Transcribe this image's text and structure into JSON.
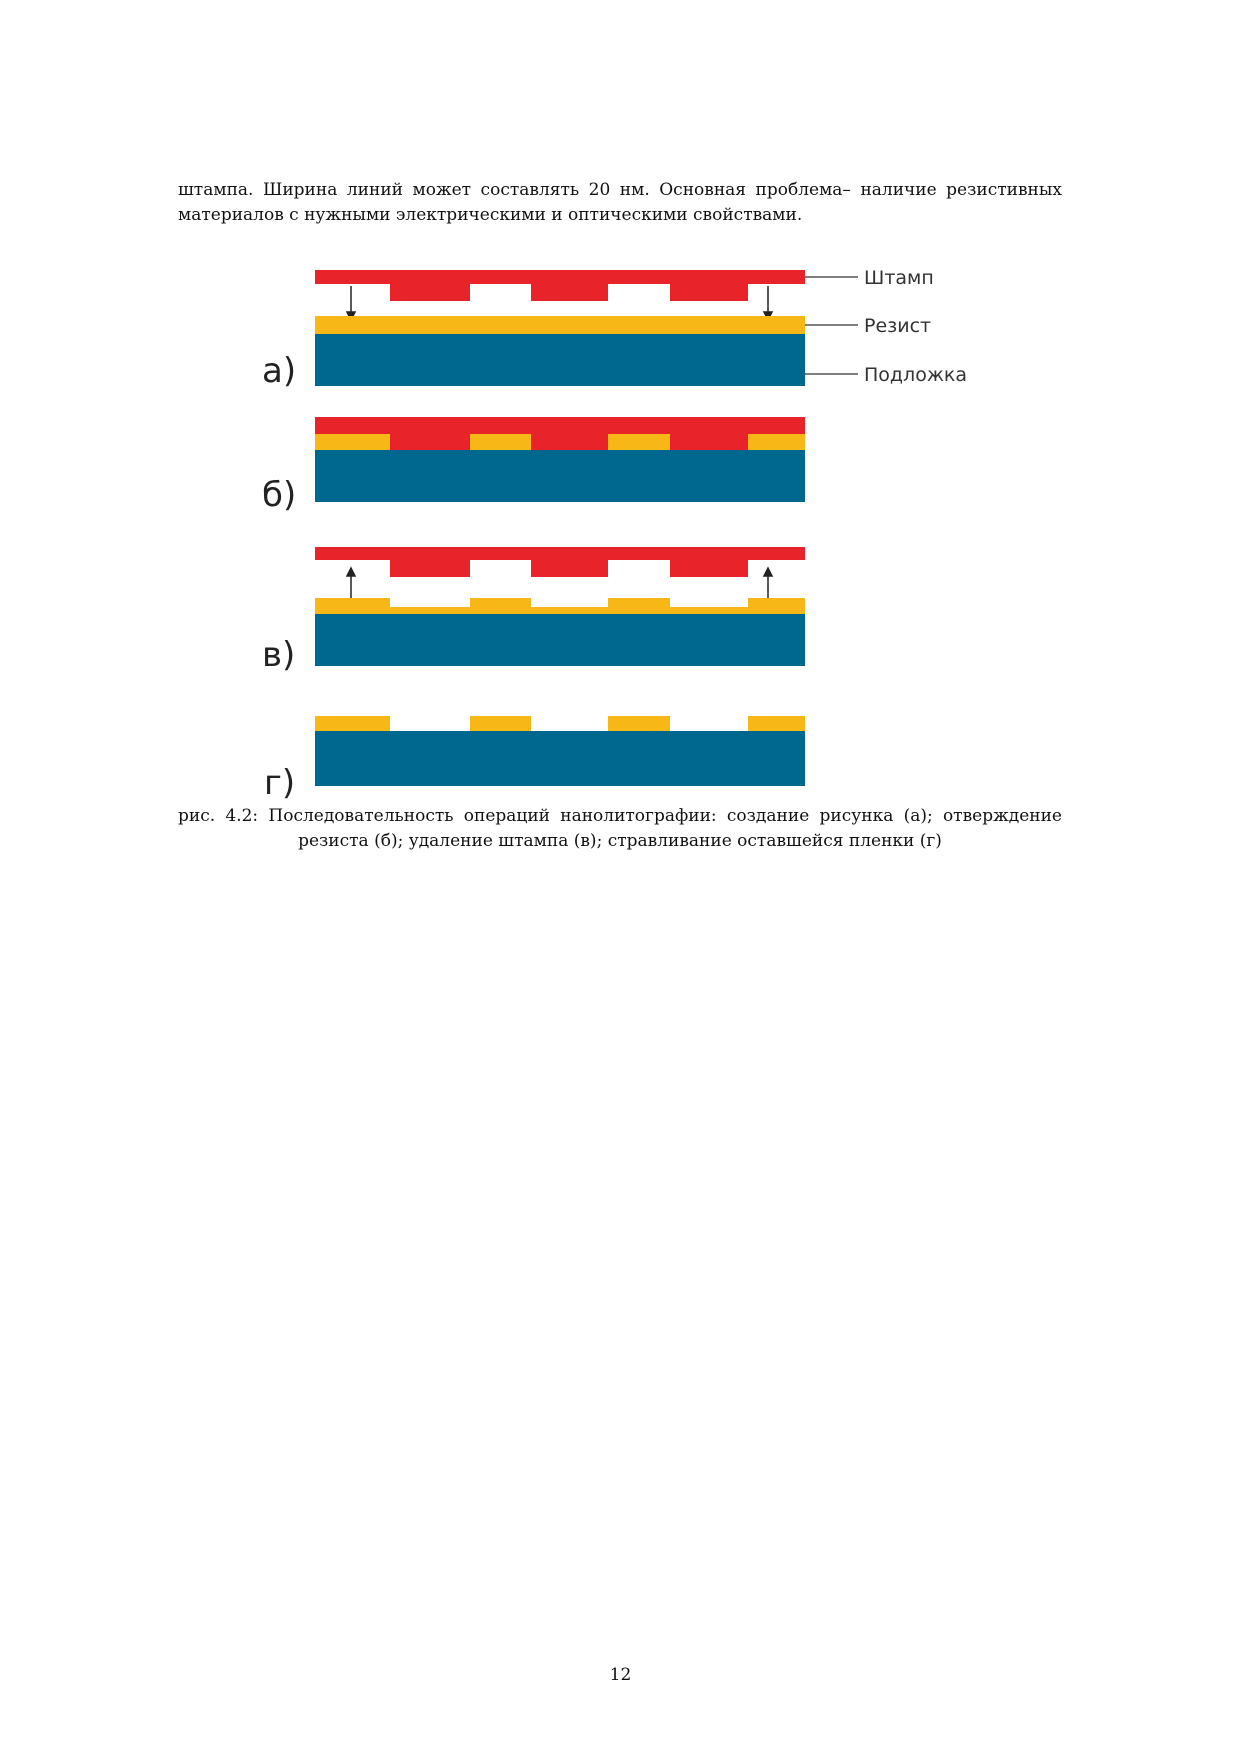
{
  "paragraph": {
    "line1": "штампа. Ширина линий может составлять 20 нм. Основная проблема– наличие резистивных",
    "line2": "материалов с нужными электрическими и оптическими свойствами."
  },
  "figure": {
    "panels": [
      "а)",
      "б)",
      "в)",
      "г)"
    ],
    "callouts": [
      "Штамп",
      "Резист",
      "Подложка"
    ],
    "colors": {
      "stamp": "#e8242a",
      "resist": "#f7b717",
      "substrate": "#00688f"
    },
    "caption_line1": "рис. 4.2: Последовательность операций нанолитографии: создание рисунка (а); отверждение",
    "caption_line2": "резиста (б); удаление штампа (в); стравливание оставшейся пленки (г)"
  },
  "page_number": "12"
}
